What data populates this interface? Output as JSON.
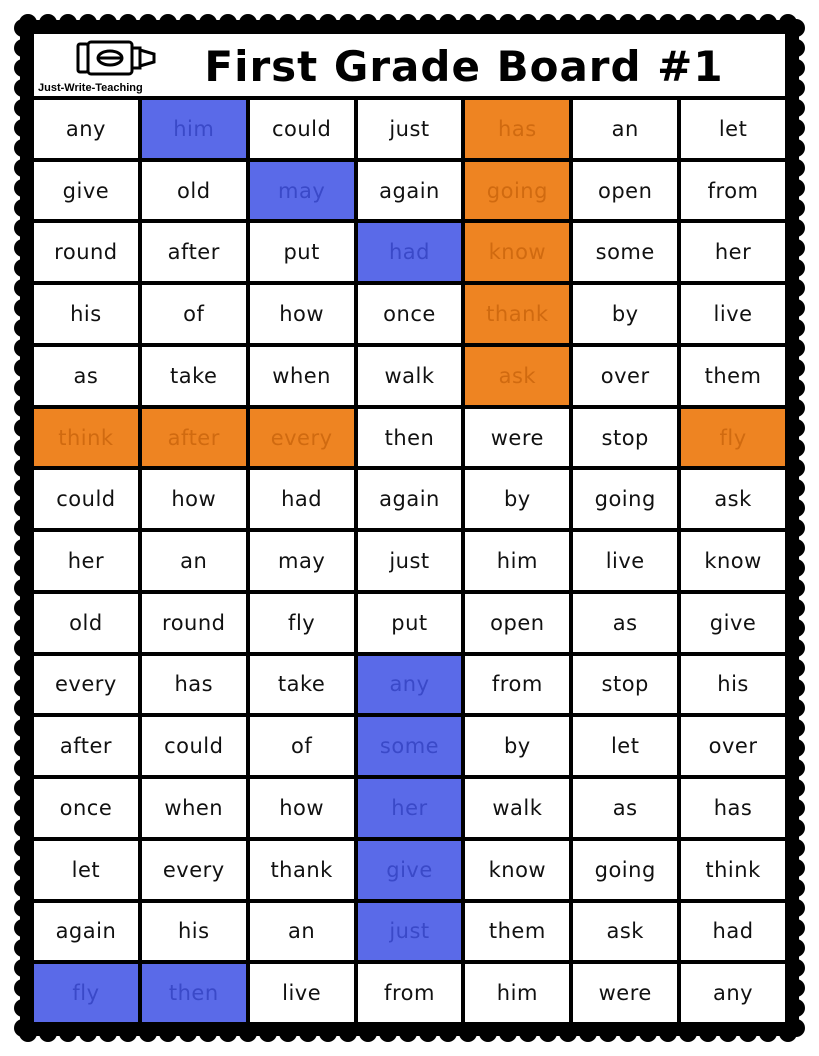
{
  "logo": {
    "text": "Just-Write-Teaching",
    "icon": "marker-icon"
  },
  "title": "First Grade Board #1",
  "colors": {
    "blue": "#5a6ae8",
    "orange": "#ee8422",
    "border": "#000000"
  },
  "grid": [
    [
      "any",
      "him",
      "could",
      "just",
      "has",
      "an",
      "let"
    ],
    [
      "give",
      "old",
      "may",
      "again",
      "going",
      "open",
      "from"
    ],
    [
      "round",
      "after",
      "put",
      "had",
      "know",
      "some",
      "her"
    ],
    [
      "his",
      "of",
      "how",
      "once",
      "thank",
      "by",
      "live"
    ],
    [
      "as",
      "take",
      "when",
      "walk",
      "ask",
      "over",
      "them"
    ],
    [
      "think",
      "after",
      "every",
      "then",
      "were",
      "stop",
      "fly"
    ],
    [
      "could",
      "how",
      "had",
      "again",
      "by",
      "going",
      "ask"
    ],
    [
      "her",
      "an",
      "may",
      "just",
      "him",
      "live",
      "know"
    ],
    [
      "old",
      "round",
      "fly",
      "put",
      "open",
      "as",
      "give"
    ],
    [
      "every",
      "has",
      "take",
      "any",
      "from",
      "stop",
      "his"
    ],
    [
      "after",
      "could",
      "of",
      "some",
      "by",
      "let",
      "over"
    ],
    [
      "once",
      "when",
      "how",
      "her",
      "walk",
      "as",
      "has"
    ],
    [
      "let",
      "every",
      "thank",
      "give",
      "know",
      "going",
      "think"
    ],
    [
      "again",
      "his",
      "an",
      "just",
      "them",
      "ask",
      "had"
    ],
    [
      "fly",
      "then",
      "live",
      "from",
      "him",
      "were",
      "any"
    ]
  ],
  "highlights": [
    [
      "",
      "blue",
      "",
      "",
      "orange",
      "",
      ""
    ],
    [
      "",
      "",
      "blue",
      "",
      "orange",
      "",
      ""
    ],
    [
      "",
      "",
      "",
      "blue",
      "orange",
      "",
      ""
    ],
    [
      "",
      "",
      "",
      "",
      "orange",
      "",
      ""
    ],
    [
      "",
      "",
      "",
      "",
      "orange",
      "",
      ""
    ],
    [
      "orange",
      "orange",
      "orange",
      "",
      "",
      "",
      "orange"
    ],
    [
      "",
      "",
      "",
      "",
      "",
      "",
      ""
    ],
    [
      "",
      "",
      "",
      "",
      "",
      "",
      ""
    ],
    [
      "",
      "",
      "",
      "",
      "",
      "",
      ""
    ],
    [
      "",
      "",
      "",
      "blue",
      "",
      "",
      ""
    ],
    [
      "",
      "",
      "",
      "blue",
      "",
      "",
      ""
    ],
    [
      "",
      "",
      "",
      "blue",
      "",
      "",
      ""
    ],
    [
      "",
      "",
      "",
      "blue",
      "",
      "",
      ""
    ],
    [
      "",
      "",
      "",
      "blue",
      "",
      "",
      ""
    ],
    [
      "blue",
      "blue",
      "",
      "",
      "",
      "",
      ""
    ]
  ]
}
